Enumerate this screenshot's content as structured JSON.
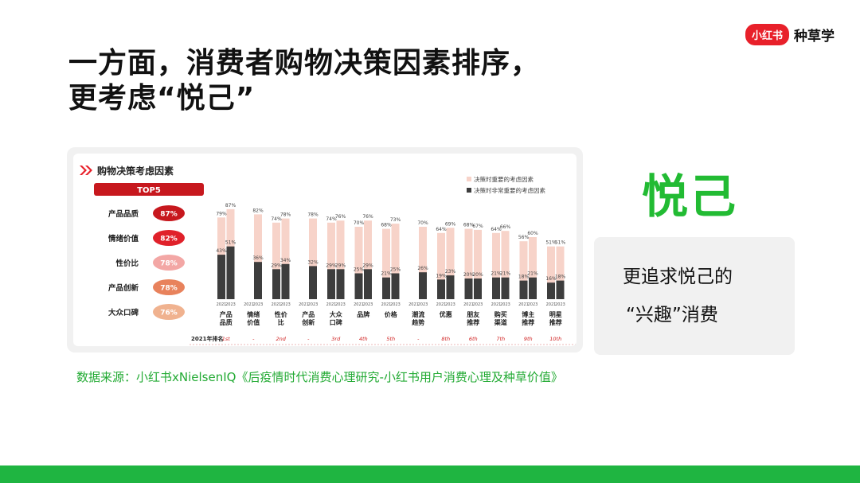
{
  "logo": {
    "badge": "小红书",
    "text": "种草学"
  },
  "headline": {
    "line1": "一方面，消费者购物决策因素排序，",
    "line2": "更考虑“悦己”"
  },
  "side": {
    "title": "悦己",
    "line1": "更追求悦己的",
    "line2": "“兴趣”消费"
  },
  "source": "数据来源：小红书xNielsenIQ《后疫情时代消费心理研究-小红书用户消费心理及种草价值》",
  "colors": {
    "brand_red": "#e8202a",
    "green": "#1fb541",
    "bar_light": "#f7d3c9",
    "bar_dark": "#3d3d3d"
  },
  "chart_data": {
    "type": "bar",
    "title": "购物决策考虑因素",
    "top5_header": "TOP5",
    "top5": [
      {
        "name": "产品品质",
        "value": "87%",
        "color": "#c7181e"
      },
      {
        "name": "情绪价值",
        "value": "82%",
        "color": "#e0212a"
      },
      {
        "name": "性价比",
        "value": "78%",
        "color": "#f3a7a5"
      },
      {
        "name": "产品创新",
        "value": "78%",
        "color": "#e8825c"
      },
      {
        "name": "大众口碑",
        "value": "76%",
        "color": "#f0b28f"
      }
    ],
    "legend": [
      "决策时重要的考虑因素",
      "决策时非常重要的考虑因素"
    ],
    "years": [
      "2021",
      "2023"
    ],
    "rank_label": "2021年排名",
    "categories": [
      {
        "name": [
          "产品",
          "品质"
        ],
        "rank": "1st",
        "important": [
          79,
          87
        ],
        "very_important": [
          43,
          51
        ],
        "important_labels": [
          "79%",
          "87%"
        ],
        "very_labels": [
          "43%",
          "51%"
        ]
      },
      {
        "name": [
          "情绪",
          "价值"
        ],
        "rank": "-",
        "important": [
          null,
          82
        ],
        "very_important": [
          null,
          36
        ],
        "important_labels": [
          "",
          "82%"
        ],
        "very_labels": [
          "",
          "36%"
        ]
      },
      {
        "name": [
          "性价",
          "比"
        ],
        "rank": "2nd",
        "important": [
          74,
          78
        ],
        "very_important": [
          29,
          34
        ],
        "important_labels": [
          "74%",
          "78%"
        ],
        "very_labels": [
          "29%",
          "34%"
        ]
      },
      {
        "name": [
          "产品",
          "创新"
        ],
        "rank": "-",
        "important": [
          null,
          78
        ],
        "very_important": [
          null,
          32
        ],
        "important_labels": [
          "",
          "78%"
        ],
        "very_labels": [
          "",
          "32%"
        ]
      },
      {
        "name": [
          "大众",
          "口碑"
        ],
        "rank": "3rd",
        "important": [
          74,
          76
        ],
        "very_important": [
          29,
          29
        ],
        "important_labels": [
          "74%",
          "76%"
        ],
        "very_labels": [
          "29%",
          "29%"
        ]
      },
      {
        "name": [
          "品牌"
        ],
        "rank": "4th",
        "important": [
          70,
          76
        ],
        "very_important": [
          25,
          29
        ],
        "important_labels": [
          "70%",
          "76%"
        ],
        "very_labels": [
          "25%",
          "29%"
        ]
      },
      {
        "name": [
          "价格"
        ],
        "rank": "5th",
        "important": [
          68,
          73
        ],
        "very_important": [
          21,
          25
        ],
        "important_labels": [
          "68%",
          "73%"
        ],
        "very_labels": [
          "21%",
          "25%"
        ]
      },
      {
        "name": [
          "潮流",
          "趋势"
        ],
        "rank": "-",
        "important": [
          null,
          70
        ],
        "very_important": [
          null,
          26
        ],
        "important_labels": [
          "",
          "70%"
        ],
        "very_labels": [
          "",
          "26%"
        ]
      },
      {
        "name": [
          "优惠"
        ],
        "rank": "8th",
        "important": [
          64,
          69
        ],
        "very_important": [
          19,
          23
        ],
        "important_labels": [
          "64%",
          "69%"
        ],
        "very_labels": [
          "19%",
          "23%"
        ]
      },
      {
        "name": [
          "朋友",
          "推荐"
        ],
        "rank": "6th",
        "important": [
          68,
          67
        ],
        "very_important": [
          20,
          20
        ],
        "important_labels": [
          "68%",
          "67%"
        ],
        "very_labels": [
          "20%",
          "20%"
        ]
      },
      {
        "name": [
          "购买",
          "渠道"
        ],
        "rank": "7th",
        "important": [
          64,
          66
        ],
        "very_important": [
          21,
          21
        ],
        "important_labels": [
          "64%",
          "66%"
        ],
        "very_labels": [
          "21%",
          "21%"
        ]
      },
      {
        "name": [
          "博主",
          "推荐"
        ],
        "rank": "9th",
        "important": [
          56,
          60
        ],
        "very_important": [
          18,
          21
        ],
        "important_labels": [
          "56%",
          "60%"
        ],
        "very_labels": [
          "18%",
          "21%"
        ]
      },
      {
        "name": [
          "明星",
          "推荐"
        ],
        "rank": "10th",
        "important": [
          51,
          51
        ],
        "very_important": [
          16,
          18
        ],
        "important_labels": [
          "51%",
          "51%"
        ],
        "very_labels": [
          "16%",
          "18%"
        ]
      }
    ],
    "ylim": [
      0,
      100
    ]
  }
}
